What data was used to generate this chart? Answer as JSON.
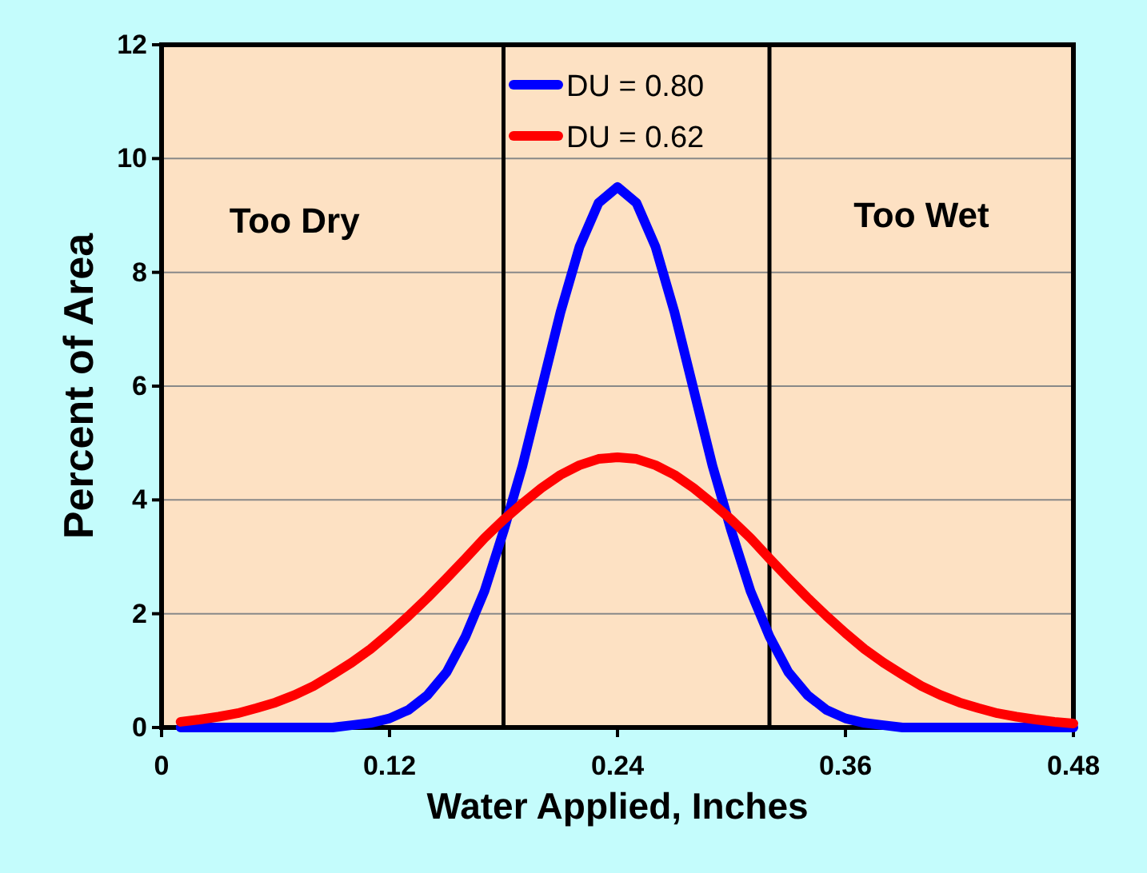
{
  "chart_data": {
    "type": "line",
    "xlabel": "Water Applied, Inches",
    "ylabel": "Percent of Area",
    "x": [
      0.01,
      0.02,
      0.03,
      0.04,
      0.05,
      0.06,
      0.07,
      0.08,
      0.09,
      0.1,
      0.11,
      0.12,
      0.13,
      0.14,
      0.15,
      0.16,
      0.17,
      0.18,
      0.19,
      0.2,
      0.21,
      0.22,
      0.23,
      0.24,
      0.25,
      0.26,
      0.27,
      0.28,
      0.29,
      0.3,
      0.31,
      0.32,
      0.33,
      0.34,
      0.35,
      0.36,
      0.37,
      0.38,
      0.39,
      0.4,
      0.41,
      0.42,
      0.43,
      0.44,
      0.45,
      0.46,
      0.47,
      0.48
    ],
    "series": [
      {
        "name": "DU = 0.80",
        "color": "#0000ff",
        "values": [
          0,
          0,
          0,
          0,
          0,
          0,
          0,
          0,
          0,
          0.04,
          0.08,
          0.16,
          0.31,
          0.57,
          0.97,
          1.6,
          2.4,
          3.45,
          4.6,
          5.95,
          7.3,
          8.45,
          9.22,
          9.5,
          9.22,
          8.45,
          7.3,
          5.95,
          4.6,
          3.45,
          2.4,
          1.6,
          0.97,
          0.57,
          0.31,
          0.16,
          0.08,
          0.04,
          0,
          0,
          0,
          0,
          0,
          0,
          0,
          0,
          0,
          0
        ]
      },
      {
        "name": "DU = 0.62",
        "color": "#ff0000",
        "values": [
          0.1,
          0.14,
          0.19,
          0.25,
          0.34,
          0.44,
          0.57,
          0.73,
          0.93,
          1.14,
          1.38,
          1.66,
          1.96,
          2.28,
          2.62,
          2.97,
          3.33,
          3.65,
          3.94,
          4.21,
          4.44,
          4.61,
          4.72,
          4.75,
          4.72,
          4.61,
          4.44,
          4.21,
          3.94,
          3.65,
          3.33,
          2.97,
          2.62,
          2.28,
          1.96,
          1.66,
          1.38,
          1.14,
          0.93,
          0.73,
          0.57,
          0.44,
          0.34,
          0.25,
          0.19,
          0.14,
          0.1,
          0.07
        ]
      }
    ],
    "xlim": [
      0,
      0.48
    ],
    "xticks": [
      0,
      0.12,
      0.24,
      0.36,
      0.48
    ],
    "ylim": [
      0,
      12
    ],
    "yticks": [
      0,
      2,
      4,
      6,
      8,
      10,
      12
    ],
    "ref_lines": [
      {
        "axis": "x",
        "value": 0.18,
        "color": "#000000"
      },
      {
        "axis": "x",
        "value": 0.32,
        "color": "#000000"
      }
    ],
    "annotations": [
      "Too Dry",
      "Too Wet"
    ],
    "grid": "y",
    "legend": "top",
    "marker": "none",
    "line_style": "solid"
  }
}
